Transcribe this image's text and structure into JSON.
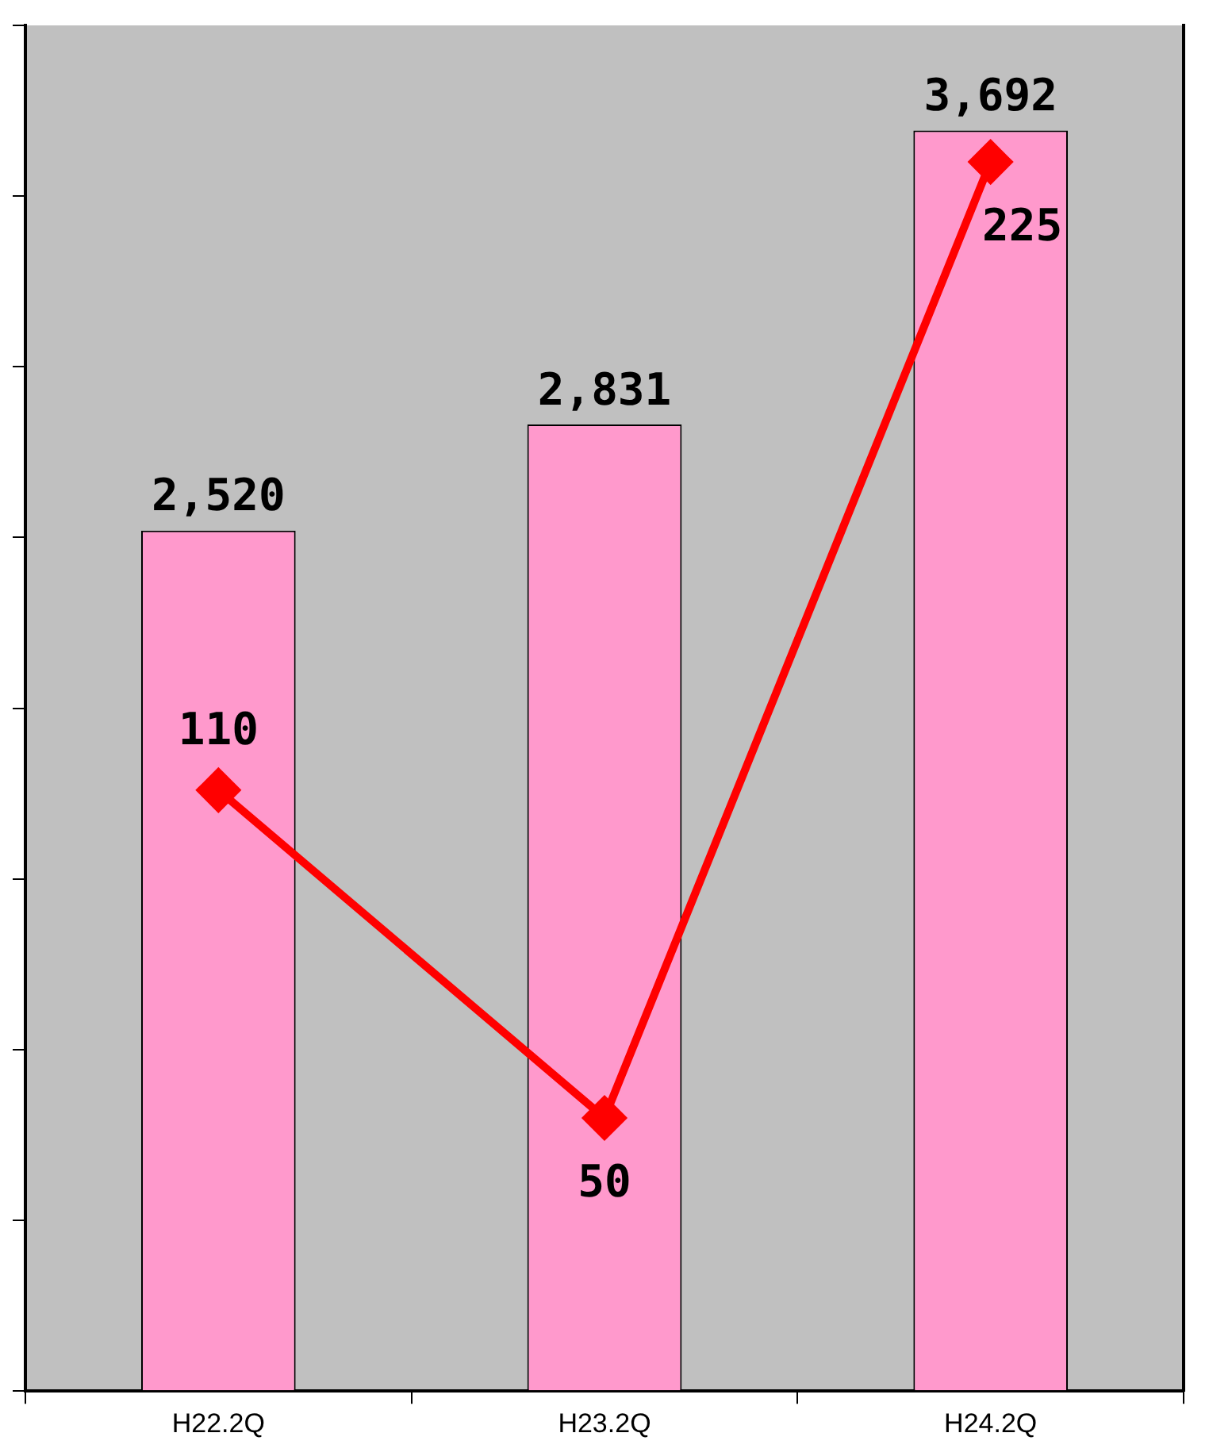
{
  "chart_data": {
    "type": "bar",
    "categories": [
      "H22.2Q",
      "H23.2Q",
      "H24.2Q"
    ],
    "series": [
      {
        "color": "#ff99cc",
        "values": [
          2520,
          2831,
          3692
        ],
        "value_labels": [
          "2,520",
          "2,831",
          "3,692"
        ]
      },
      {
        "type": "line",
        "axis": "y2",
        "color": "#ff0000",
        "marker": "diamond",
        "values": [
          110,
          50,
          225
        ],
        "value_labels": [
          "110",
          "50",
          "225"
        ]
      }
    ],
    "ylim": [
      0,
      4000
    ],
    "y2lim": [
      0,
      250
    ],
    "tick_labels": "x",
    "grid": false,
    "legend": false
  }
}
